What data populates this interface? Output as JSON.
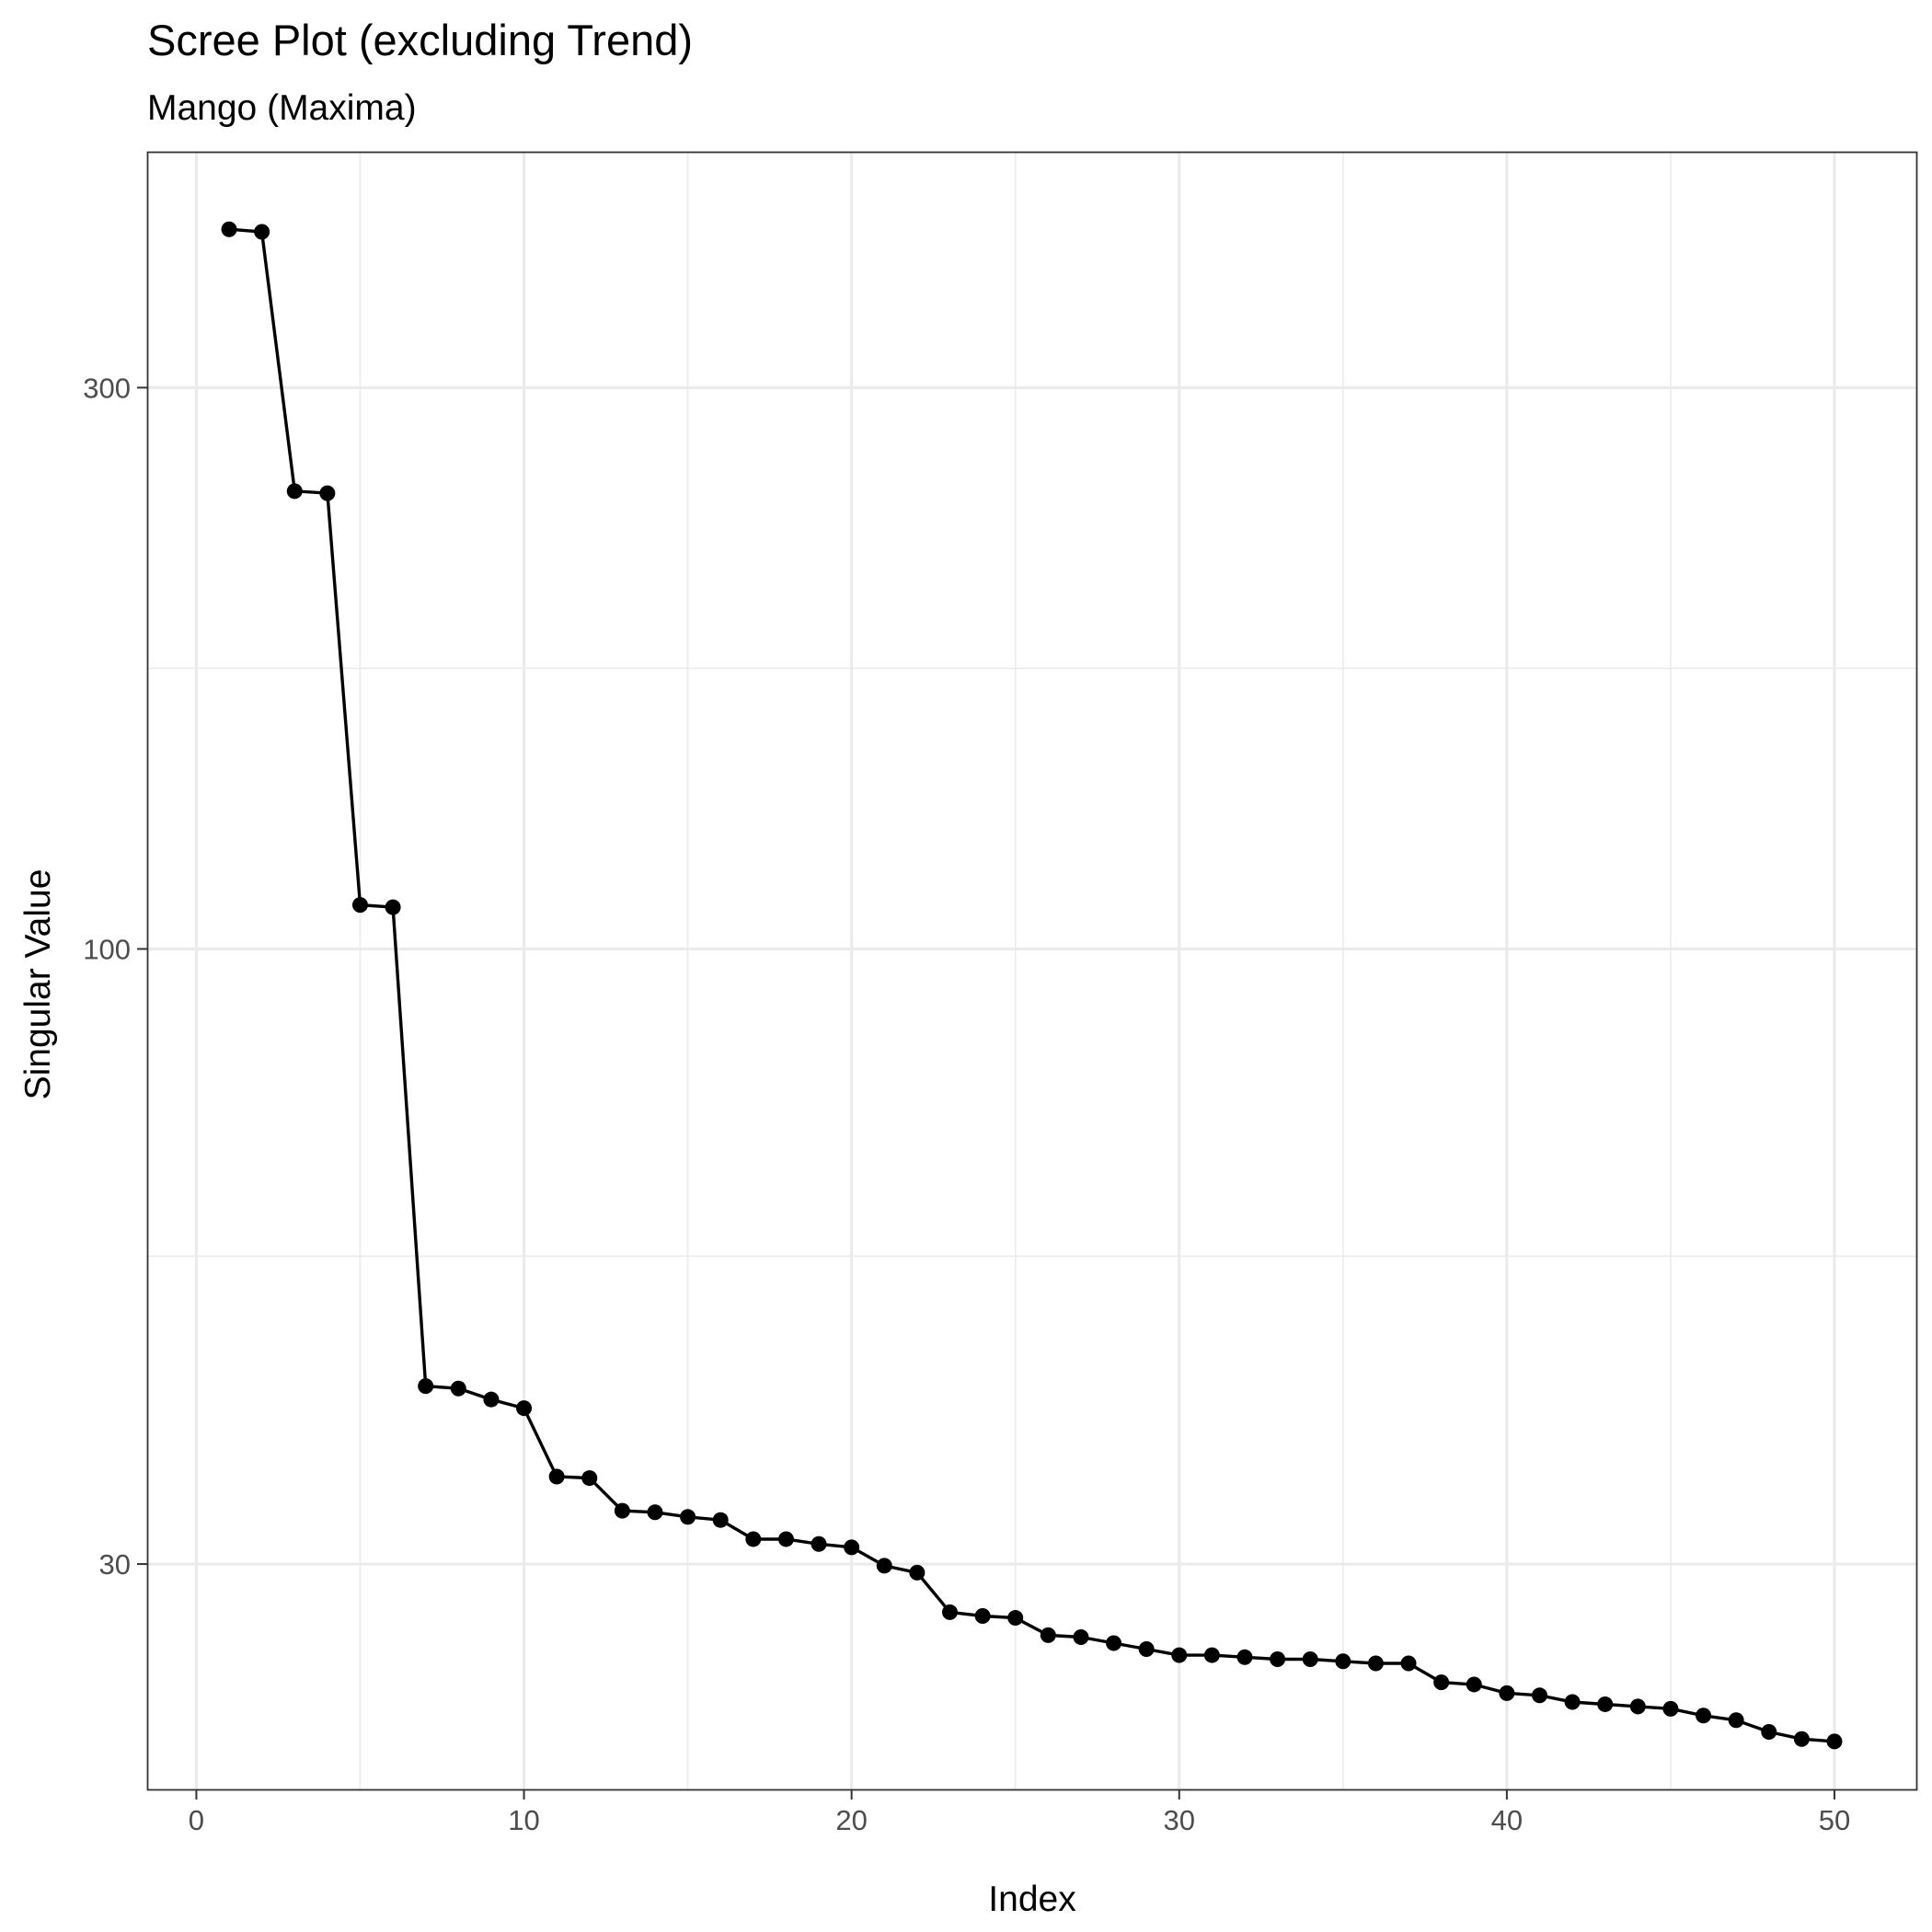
{
  "chart_data": {
    "type": "line",
    "title": "Scree Plot (excluding Trend)",
    "subtitle": "Mango (Maxima)",
    "xlabel": "Index",
    "ylabel": "Singular Value",
    "y_scale": "log10",
    "grid": true,
    "legend": "none",
    "xlim": [
      -1.5,
      52.5
    ],
    "ylim": [
      19.3,
      476
    ],
    "x_ticks": [
      0,
      10,
      20,
      30,
      40,
      50
    ],
    "x_tick_labels": [
      "0",
      "10",
      "20",
      "30",
      "40",
      "50"
    ],
    "x_minor_ticks": [
      5,
      15,
      25,
      35,
      45
    ],
    "y_ticks": [
      30,
      100,
      300
    ],
    "y_tick_labels": [
      "30",
      "100",
      "300"
    ],
    "y_minor_ticks": [
      54.8,
      173.2
    ],
    "line_color": "#000000",
    "series": [
      {
        "x": [
          1,
          2,
          3,
          4,
          5,
          6,
          7,
          8,
          9,
          10,
          11,
          12,
          13,
          14,
          15,
          16,
          17,
          18,
          19,
          20,
          21,
          22,
          23,
          24,
          25,
          26,
          27,
          28,
          29,
          30,
          31,
          32,
          33,
          34,
          35,
          36,
          37,
          38,
          39,
          40,
          41,
          42,
          43,
          44,
          45,
          46,
          47,
          48,
          49,
          50
        ],
        "values": [
          409,
          407,
          245,
          244,
          109,
          108.5,
          42.5,
          42.3,
          41.4,
          40.7,
          35.6,
          35.5,
          33.3,
          33.2,
          32.9,
          32.7,
          31.5,
          31.5,
          31.2,
          31.0,
          29.9,
          29.5,
          27.3,
          27.1,
          27.0,
          26.1,
          26.0,
          25.7,
          25.4,
          25.1,
          25.1,
          25.0,
          24.9,
          24.9,
          24.8,
          24.7,
          24.7,
          23.8,
          23.7,
          23.3,
          23.2,
          22.9,
          22.8,
          22.7,
          22.6,
          22.3,
          22.1,
          21.6,
          21.3,
          21.2
        ]
      }
    ]
  }
}
